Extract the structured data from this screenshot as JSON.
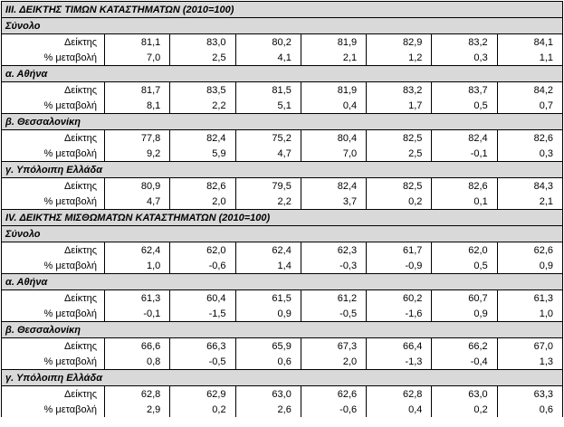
{
  "sections": [
    {
      "title": "III. ΔΕΙΚΤΗΣ ΤΙΜΩΝ ΚΑΤΑΣΤΗΜΑΤΩΝ (2010=100)",
      "groups": [
        {
          "name": "Σύνολο",
          "rows": [
            {
              "label": "Δείκτης",
              "values": [
                "81,1",
                "83,0",
                "80,2",
                "81,9",
                "82,9",
                "83,2",
                "84,1"
              ]
            },
            {
              "label": "% μεταβολή",
              "values": [
                "7,0",
                "2,5",
                "4,1",
                "2,1",
                "1,2",
                "0,3",
                "1,1"
              ]
            }
          ]
        },
        {
          "name": "α.  Αθήνα",
          "rows": [
            {
              "label": "Δείκτης",
              "values": [
                "81,7",
                "83,5",
                "81,5",
                "81,9",
                "83,2",
                "83,7",
                "84,2"
              ]
            },
            {
              "label": "% μεταβολή",
              "values": [
                "8,1",
                "2,2",
                "5,1",
                "0,4",
                "1,7",
                "0,5",
                "0,7"
              ]
            }
          ]
        },
        {
          "name": "β.  Θεσσαλονίκη",
          "rows": [
            {
              "label": "Δείκτης",
              "values": [
                "77,8",
                "82,4",
                "75,2",
                "80,4",
                "82,5",
                "82,4",
                "82,6"
              ]
            },
            {
              "label": "% μεταβολή",
              "values": [
                "9,2",
                "5,9",
                "4,7",
                "7,0",
                "2,5",
                "-0,1",
                "0,3"
              ]
            }
          ]
        },
        {
          "name": "γ. Υπόλοιπη Ελλάδα",
          "rows": [
            {
              "label": "Δείκτης",
              "values": [
                "80,9",
                "82,6",
                "79,5",
                "82,4",
                "82,5",
                "82,6",
                "84,3"
              ]
            },
            {
              "label": "% μεταβολή",
              "values": [
                "4,7",
                "2,0",
                "2,2",
                "3,7",
                "0,2",
                "0,1",
                "2,1"
              ]
            }
          ]
        }
      ]
    },
    {
      "title": "IV. ΔΕΙΚΤΗΣ ΜΙΣΘΩΜΑΤΩΝ ΚΑΤΑΣΤΗΜΑΤΩΝ (2010=100)",
      "groups": [
        {
          "name": "Σύνολο",
          "rows": [
            {
              "label": "Δείκτης",
              "values": [
                "62,4",
                "62,0",
                "62,4",
                "62,3",
                "61,7",
                "62,0",
                "62,6"
              ]
            },
            {
              "label": "% μεταβολή",
              "values": [
                "1,0",
                "-0,6",
                "1,4",
                "-0,3",
                "-0,9",
                "0,5",
                "0,9"
              ]
            }
          ]
        },
        {
          "name": "α.  Αθήνα",
          "rows": [
            {
              "label": "Δείκτης",
              "values": [
                "61,3",
                "60,4",
                "61,5",
                "61,2",
                "60,2",
                "60,7",
                "61,3"
              ]
            },
            {
              "label": "% μεταβολή",
              "values": [
                "-0,1",
                "-1,5",
                "0,9",
                "-0,5",
                "-1,6",
                "0,9",
                "1,0"
              ]
            }
          ]
        },
        {
          "name": "β.  Θεσσαλονίκη",
          "rows": [
            {
              "label": "Δείκτης",
              "values": [
                "66,6",
                "66,3",
                "65,9",
                "67,3",
                "66,4",
                "66,2",
                "67,0"
              ]
            },
            {
              "label": "% μεταβολή",
              "values": [
                "0,8",
                "-0,5",
                "0,6",
                "2,0",
                "-1,3",
                "-0,4",
                "1,3"
              ]
            }
          ]
        },
        {
          "name": "γ. Υπόλοιπη Ελλάδα",
          "rows": [
            {
              "label": "Δείκτης",
              "values": [
                "62,8",
                "62,9",
                "63,0",
                "62,6",
                "62,8",
                "63,0",
                "63,3"
              ]
            },
            {
              "label": "% μεταβολή",
              "values": [
                "2,9",
                "0,2",
                "2,6",
                "-0,6",
                "0,4",
                "0,2",
                "0,6"
              ]
            }
          ]
        }
      ]
    }
  ]
}
